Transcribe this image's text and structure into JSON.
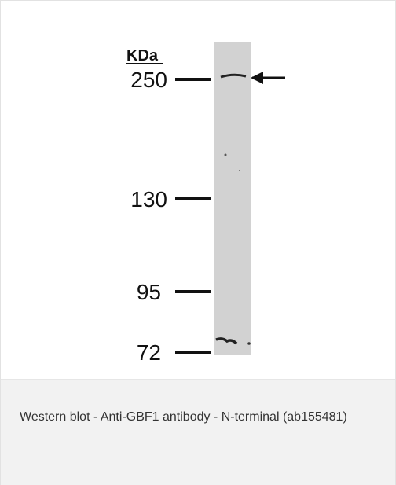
{
  "figure": {
    "unit_label": "KDa",
    "markers": [
      "250",
      "130",
      "95",
      "72"
    ]
  },
  "caption": "Western blot - Anti-GBF1 antibody - N-terminal (ab155481)"
}
